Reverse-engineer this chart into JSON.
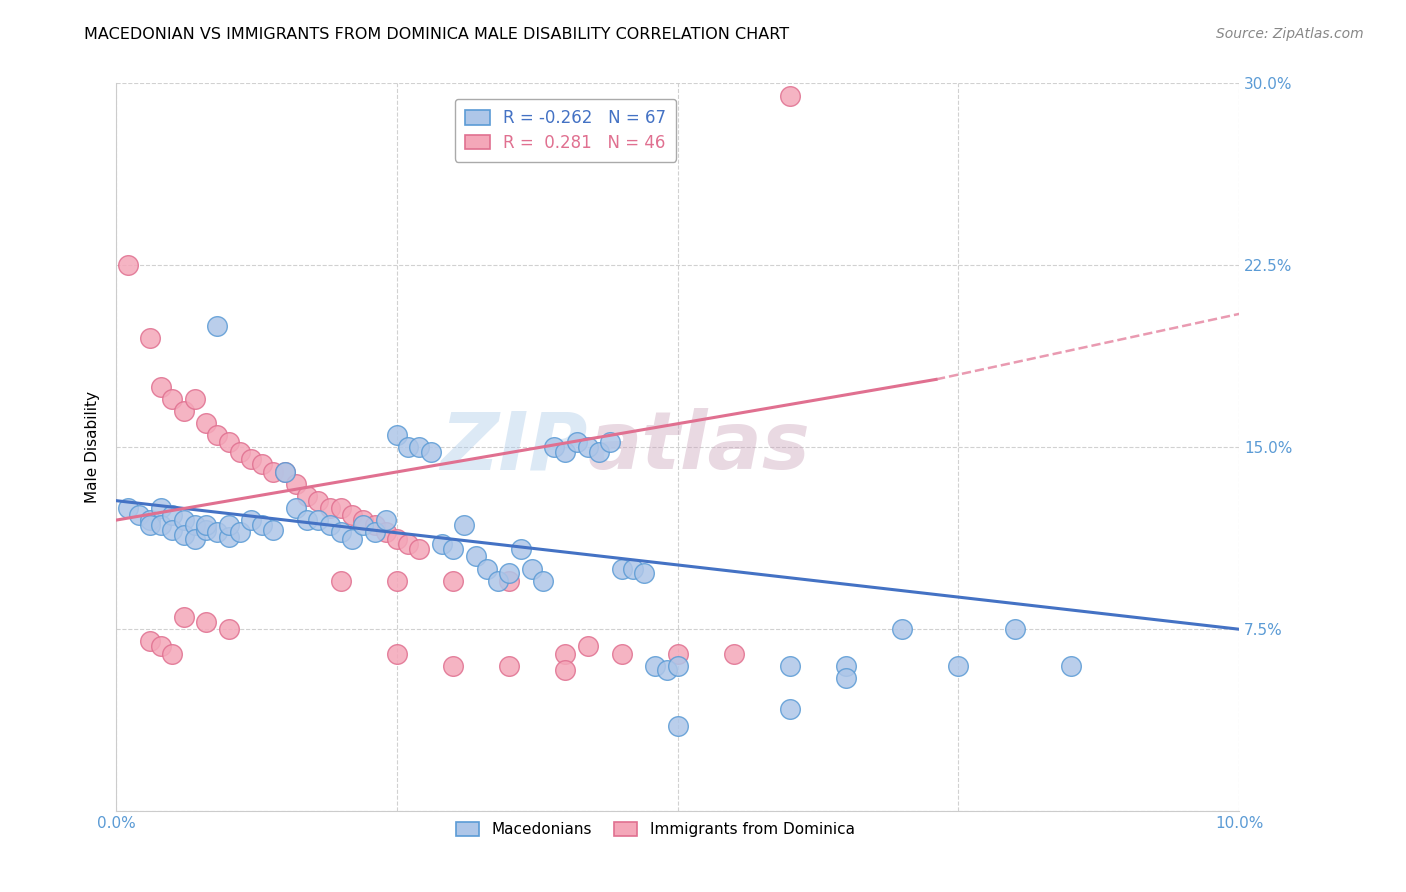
{
  "title": "MACEDONIAN VS IMMIGRANTS FROM DOMINICA MALE DISABILITY CORRELATION CHART",
  "source": "Source: ZipAtlas.com",
  "ylabel": "Male Disability",
  "x_min": 0.0,
  "x_max": 0.1,
  "y_min": 0.0,
  "y_max": 0.3,
  "x_ticks": [
    0.0,
    0.025,
    0.05,
    0.075,
    0.1
  ],
  "x_tick_labels_bottom": [
    "0.0%",
    "",
    "",
    "",
    "10.0%"
  ],
  "y_ticks": [
    0.0,
    0.075,
    0.15,
    0.225,
    0.3
  ],
  "y_tick_labels_right": [
    "",
    "7.5%",
    "15.0%",
    "22.5%",
    "30.0%"
  ],
  "macedonian_color": "#aec6e8",
  "dominica_color": "#f4a7b9",
  "macedonian_edge": "#5b9bd5",
  "dominica_edge": "#e07090",
  "watermark_zip": "ZIP",
  "watermark_atlas": "atlas",
  "blue_line": {
    "x": [
      0.0,
      0.1
    ],
    "y": [
      0.128,
      0.075
    ]
  },
  "pink_line_solid": {
    "x": [
      0.0,
      0.073
    ],
    "y": [
      0.12,
      0.178
    ]
  },
  "pink_line_dashed": {
    "x": [
      0.073,
      0.1
    ],
    "y": [
      0.178,
      0.205
    ]
  },
  "macedonians_scatter": [
    [
      0.001,
      0.125
    ],
    [
      0.002,
      0.122
    ],
    [
      0.003,
      0.12
    ],
    [
      0.003,
      0.118
    ],
    [
      0.004,
      0.125
    ],
    [
      0.004,
      0.118
    ],
    [
      0.005,
      0.122
    ],
    [
      0.005,
      0.116
    ],
    [
      0.006,
      0.12
    ],
    [
      0.006,
      0.114
    ],
    [
      0.007,
      0.118
    ],
    [
      0.007,
      0.112
    ],
    [
      0.008,
      0.116
    ],
    [
      0.008,
      0.118
    ],
    [
      0.009,
      0.115
    ],
    [
      0.009,
      0.2
    ],
    [
      0.01,
      0.113
    ],
    [
      0.01,
      0.118
    ],
    [
      0.011,
      0.115
    ],
    [
      0.012,
      0.12
    ],
    [
      0.013,
      0.118
    ],
    [
      0.014,
      0.116
    ],
    [
      0.015,
      0.14
    ],
    [
      0.016,
      0.125
    ],
    [
      0.017,
      0.12
    ],
    [
      0.018,
      0.12
    ],
    [
      0.019,
      0.118
    ],
    [
      0.02,
      0.115
    ],
    [
      0.021,
      0.112
    ],
    [
      0.022,
      0.118
    ],
    [
      0.023,
      0.115
    ],
    [
      0.024,
      0.12
    ],
    [
      0.025,
      0.155
    ],
    [
      0.026,
      0.15
    ],
    [
      0.027,
      0.15
    ],
    [
      0.028,
      0.148
    ],
    [
      0.029,
      0.11
    ],
    [
      0.03,
      0.108
    ],
    [
      0.031,
      0.118
    ],
    [
      0.032,
      0.105
    ],
    [
      0.033,
      0.1
    ],
    [
      0.034,
      0.095
    ],
    [
      0.035,
      0.098
    ],
    [
      0.036,
      0.108
    ],
    [
      0.037,
      0.1
    ],
    [
      0.038,
      0.095
    ],
    [
      0.039,
      0.15
    ],
    [
      0.04,
      0.148
    ],
    [
      0.041,
      0.152
    ],
    [
      0.042,
      0.15
    ],
    [
      0.043,
      0.148
    ],
    [
      0.044,
      0.152
    ],
    [
      0.045,
      0.1
    ],
    [
      0.046,
      0.1
    ],
    [
      0.047,
      0.098
    ],
    [
      0.048,
      0.06
    ],
    [
      0.049,
      0.058
    ],
    [
      0.05,
      0.06
    ],
    [
      0.06,
      0.06
    ],
    [
      0.065,
      0.06
    ],
    [
      0.07,
      0.075
    ],
    [
      0.075,
      0.06
    ],
    [
      0.08,
      0.075
    ],
    [
      0.085,
      0.06
    ],
    [
      0.05,
      0.035
    ],
    [
      0.06,
      0.042
    ],
    [
      0.065,
      0.055
    ]
  ],
  "dominica_scatter": [
    [
      0.001,
      0.225
    ],
    [
      0.003,
      0.195
    ],
    [
      0.004,
      0.175
    ],
    [
      0.005,
      0.17
    ],
    [
      0.006,
      0.165
    ],
    [
      0.007,
      0.17
    ],
    [
      0.008,
      0.16
    ],
    [
      0.009,
      0.155
    ],
    [
      0.01,
      0.152
    ],
    [
      0.011,
      0.148
    ],
    [
      0.012,
      0.145
    ],
    [
      0.013,
      0.143
    ],
    [
      0.014,
      0.14
    ],
    [
      0.015,
      0.14
    ],
    [
      0.016,
      0.135
    ],
    [
      0.017,
      0.13
    ],
    [
      0.018,
      0.128
    ],
    [
      0.019,
      0.125
    ],
    [
      0.02,
      0.125
    ],
    [
      0.021,
      0.122
    ],
    [
      0.022,
      0.12
    ],
    [
      0.023,
      0.118
    ],
    [
      0.024,
      0.115
    ],
    [
      0.025,
      0.112
    ],
    [
      0.026,
      0.11
    ],
    [
      0.027,
      0.108
    ],
    [
      0.003,
      0.07
    ],
    [
      0.004,
      0.068
    ],
    [
      0.005,
      0.065
    ],
    [
      0.02,
      0.095
    ],
    [
      0.025,
      0.095
    ],
    [
      0.03,
      0.095
    ],
    [
      0.035,
      0.095
    ],
    [
      0.04,
      0.065
    ],
    [
      0.042,
      0.068
    ],
    [
      0.045,
      0.065
    ],
    [
      0.05,
      0.065
    ],
    [
      0.055,
      0.065
    ],
    [
      0.025,
      0.065
    ],
    [
      0.03,
      0.06
    ],
    [
      0.035,
      0.06
    ],
    [
      0.04,
      0.058
    ],
    [
      0.06,
      0.295
    ],
    [
      0.006,
      0.08
    ],
    [
      0.008,
      0.078
    ],
    [
      0.01,
      0.075
    ]
  ]
}
